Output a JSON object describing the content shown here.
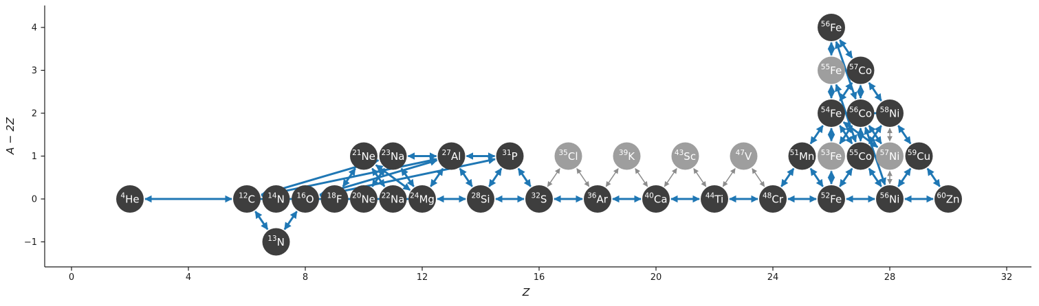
{
  "figure": {
    "background": "#ffffff"
  },
  "chart_data": {
    "type": "scatter",
    "subtype": "nuclear-reaction-network-graph",
    "title": "",
    "xlabel": "Z",
    "ylabel": "A − 2Z",
    "grid": false,
    "legend": null,
    "xlim": [
      -1,
      33.5
    ],
    "ylim": [
      -1.6,
      4.5
    ],
    "x_ticks": [
      0,
      4,
      8,
      12,
      16,
      20,
      24,
      28,
      32
    ],
    "x_tick_labels": [
      "0",
      "4",
      "8",
      "12",
      "16",
      "20",
      "24",
      "28",
      "32"
    ],
    "y_ticks": [
      4,
      3,
      2,
      1,
      0,
      -1
    ],
    "y_tick_labels": [
      "4",
      "3",
      "2",
      "1",
      "0",
      "−1"
    ],
    "colors": {
      "node_dark": "#3e3e3e",
      "node_light": "#9e9e9e",
      "node_label": "#ffffff",
      "edge_blue": "#1f77b4",
      "edge_gray": "#8c8c8c",
      "axis": "#1a1a1a",
      "background": "#ffffff"
    },
    "nodes": [
      {
        "id": "He4",
        "mass": "4",
        "sym": "He",
        "z": 2,
        "a2z": 0,
        "shade": "dark"
      },
      {
        "id": "C12",
        "mass": "12",
        "sym": "C",
        "z": 6,
        "a2z": 0,
        "shade": "dark"
      },
      {
        "id": "N13",
        "mass": "13",
        "sym": "N",
        "z": 7,
        "a2z": -1,
        "shade": "dark"
      },
      {
        "id": "N14",
        "mass": "14",
        "sym": "N",
        "z": 7,
        "a2z": 0,
        "shade": "dark"
      },
      {
        "id": "O16",
        "mass": "16",
        "sym": "O",
        "z": 8,
        "a2z": 0,
        "shade": "dark"
      },
      {
        "id": "F18",
        "mass": "18",
        "sym": "F",
        "z": 9,
        "a2z": 0,
        "shade": "dark"
      },
      {
        "id": "Ne20",
        "mass": "20",
        "sym": "Ne",
        "z": 10,
        "a2z": 0,
        "shade": "dark"
      },
      {
        "id": "Ne21",
        "mass": "21",
        "sym": "Ne",
        "z": 10,
        "a2z": 1,
        "shade": "dark"
      },
      {
        "id": "Na22",
        "mass": "22",
        "sym": "Na",
        "z": 11,
        "a2z": 0,
        "shade": "dark"
      },
      {
        "id": "Na23",
        "mass": "23",
        "sym": "Na",
        "z": 11,
        "a2z": 1,
        "shade": "dark"
      },
      {
        "id": "Mg24",
        "mass": "24",
        "sym": "Mg",
        "z": 12,
        "a2z": 0,
        "shade": "dark"
      },
      {
        "id": "Al27",
        "mass": "27",
        "sym": "Al",
        "z": 13,
        "a2z": 1,
        "shade": "dark"
      },
      {
        "id": "Si28",
        "mass": "28",
        "sym": "Si",
        "z": 14,
        "a2z": 0,
        "shade": "dark"
      },
      {
        "id": "P31",
        "mass": "31",
        "sym": "P",
        "z": 15,
        "a2z": 1,
        "shade": "dark"
      },
      {
        "id": "S32",
        "mass": "32",
        "sym": "S",
        "z": 16,
        "a2z": 0,
        "shade": "dark"
      },
      {
        "id": "Cl35",
        "mass": "35",
        "sym": "Cl",
        "z": 17,
        "a2z": 1,
        "shade": "light"
      },
      {
        "id": "Ar36",
        "mass": "36",
        "sym": "Ar",
        "z": 18,
        "a2z": 0,
        "shade": "dark"
      },
      {
        "id": "K39",
        "mass": "39",
        "sym": "K",
        "z": 19,
        "a2z": 1,
        "shade": "light"
      },
      {
        "id": "Ca40",
        "mass": "40",
        "sym": "Ca",
        "z": 20,
        "a2z": 0,
        "shade": "dark"
      },
      {
        "id": "Sc43",
        "mass": "43",
        "sym": "Sc",
        "z": 21,
        "a2z": 1,
        "shade": "light"
      },
      {
        "id": "Ti44",
        "mass": "44",
        "sym": "Ti",
        "z": 22,
        "a2z": 0,
        "shade": "dark"
      },
      {
        "id": "V47",
        "mass": "47",
        "sym": "V",
        "z": 23,
        "a2z": 1,
        "shade": "light"
      },
      {
        "id": "Cr48",
        "mass": "48",
        "sym": "Cr",
        "z": 24,
        "a2z": 0,
        "shade": "dark"
      },
      {
        "id": "Mn51",
        "mass": "51",
        "sym": "Mn",
        "z": 25,
        "a2z": 1,
        "shade": "dark"
      },
      {
        "id": "Fe52",
        "mass": "52",
        "sym": "Fe",
        "z": 26,
        "a2z": 0,
        "shade": "dark"
      },
      {
        "id": "Fe53",
        "mass": "53",
        "sym": "Fe",
        "z": 26,
        "a2z": 1,
        "shade": "light"
      },
      {
        "id": "Fe54",
        "mass": "54",
        "sym": "Fe",
        "z": 26,
        "a2z": 2,
        "shade": "dark"
      },
      {
        "id": "Fe55",
        "mass": "55",
        "sym": "Fe",
        "z": 26,
        "a2z": 3,
        "shade": "light"
      },
      {
        "id": "Fe56",
        "mass": "56",
        "sym": "Fe",
        "z": 26,
        "a2z": 4,
        "shade": "dark"
      },
      {
        "id": "Co55",
        "mass": "55",
        "sym": "Co",
        "z": 27,
        "a2z": 1,
        "shade": "dark"
      },
      {
        "id": "Co56",
        "mass": "56",
        "sym": "Co",
        "z": 27,
        "a2z": 2,
        "shade": "dark"
      },
      {
        "id": "Co57",
        "mass": "57",
        "sym": "Co",
        "z": 27,
        "a2z": 3,
        "shade": "dark"
      },
      {
        "id": "Ni56",
        "mass": "56",
        "sym": "Ni",
        "z": 28,
        "a2z": 0,
        "shade": "dark"
      },
      {
        "id": "Ni57",
        "mass": "57",
        "sym": "Ni",
        "z": 28,
        "a2z": 1,
        "shade": "light"
      },
      {
        "id": "Ni58",
        "mass": "58",
        "sym": "Ni",
        "z": 28,
        "a2z": 2,
        "shade": "dark"
      },
      {
        "id": "Cu59",
        "mass": "59",
        "sym": "Cu",
        "z": 29,
        "a2z": 1,
        "shade": "dark"
      },
      {
        "id": "Zn60",
        "mass": "60",
        "sym": "Zn",
        "z": 30,
        "a2z": 0,
        "shade": "dark"
      }
    ],
    "edges": [
      [
        "He4",
        "C12",
        "b"
      ],
      [
        "C12",
        "N14",
        "b"
      ],
      [
        "N14",
        "O16",
        "b"
      ],
      [
        "O16",
        "F18",
        "b"
      ],
      [
        "F18",
        "Ne20",
        "b"
      ],
      [
        "Ne20",
        "Na22",
        "b"
      ],
      [
        "Na22",
        "Mg24",
        "b"
      ],
      [
        "Mg24",
        "Si28",
        "b"
      ],
      [
        "Si28",
        "S32",
        "b"
      ],
      [
        "S32",
        "Ar36",
        "b"
      ],
      [
        "Ar36",
        "Ca40",
        "b"
      ],
      [
        "Ca40",
        "Ti44",
        "b"
      ],
      [
        "Ti44",
        "Cr48",
        "b"
      ],
      [
        "Cr48",
        "Fe52",
        "b"
      ],
      [
        "Fe52",
        "Ni56",
        "b"
      ],
      [
        "Ni56",
        "Zn60",
        "b"
      ],
      [
        "C12",
        "N13",
        "b"
      ],
      [
        "N13",
        "O16",
        "b"
      ],
      [
        "C12",
        "Na23",
        "b"
      ],
      [
        "C12",
        "Al27",
        "b"
      ],
      [
        "O16",
        "Al27",
        "b"
      ],
      [
        "O16",
        "P31",
        "b"
      ],
      [
        "F18",
        "Ne21",
        "b"
      ],
      [
        "Ne21",
        "Na22",
        "b"
      ],
      [
        "Ne21",
        "Mg24",
        "b"
      ],
      [
        "Na23",
        "Ne20",
        "b"
      ],
      [
        "Na23",
        "Mg24",
        "b"
      ],
      [
        "Na23",
        "Al27",
        "b"
      ],
      [
        "Mg24",
        "Al27",
        "b"
      ],
      [
        "Al27",
        "Si28",
        "b"
      ],
      [
        "Al27",
        "P31",
        "b"
      ],
      [
        "Si28",
        "P31",
        "b"
      ],
      [
        "P31",
        "S32",
        "b"
      ],
      [
        "S32",
        "Cl35",
        "g"
      ],
      [
        "Cl35",
        "Ar36",
        "g"
      ],
      [
        "Ar36",
        "K39",
        "g"
      ],
      [
        "K39",
        "Ca40",
        "g"
      ],
      [
        "Ca40",
        "Sc43",
        "g"
      ],
      [
        "Sc43",
        "Ti44",
        "g"
      ],
      [
        "Ti44",
        "V47",
        "g"
      ],
      [
        "V47",
        "Cr48",
        "g"
      ],
      [
        "Cr48",
        "Mn51",
        "b"
      ],
      [
        "Mn51",
        "Fe52",
        "b"
      ],
      [
        "Mn51",
        "Fe54",
        "b"
      ],
      [
        "Fe52",
        "Fe53",
        "b"
      ],
      [
        "Fe52",
        "Co55",
        "b"
      ],
      [
        "Fe53",
        "Fe54",
        "b"
      ],
      [
        "Fe53",
        "Co56",
        "b"
      ],
      [
        "Fe54",
        "Co55",
        "b"
      ],
      [
        "Fe54",
        "Fe55",
        "b"
      ],
      [
        "Fe54",
        "Ni57",
        "b"
      ],
      [
        "Fe54",
        "Co56",
        "b"
      ],
      [
        "Fe55",
        "Fe56",
        "b"
      ],
      [
        "Fe55",
        "Co55",
        "b"
      ],
      [
        "Fe56",
        "Co57",
        "b"
      ],
      [
        "Fe56",
        "Co56",
        "b"
      ],
      [
        "Co57",
        "Co56",
        "b"
      ],
      [
        "Co57",
        "Fe54",
        "b"
      ],
      [
        "Co57",
        "Ni58",
        "b"
      ],
      [
        "Co55",
        "Co56",
        "b"
      ],
      [
        "Co55",
        "Ni56",
        "b"
      ],
      [
        "Co55",
        "Ni58",
        "b"
      ],
      [
        "Co56",
        "Ni58",
        "b"
      ],
      [
        "Co56",
        "Ni57",
        "b"
      ],
      [
        "Ni56",
        "Co56",
        "b"
      ],
      [
        "Ni56",
        "Cu59",
        "b"
      ],
      [
        "Ni56",
        "Ni57",
        "g"
      ],
      [
        "Ni57",
        "Ni58",
        "g"
      ],
      [
        "Ni58",
        "Cu59",
        "b"
      ],
      [
        "Cu59",
        "Zn60",
        "b"
      ]
    ]
  }
}
